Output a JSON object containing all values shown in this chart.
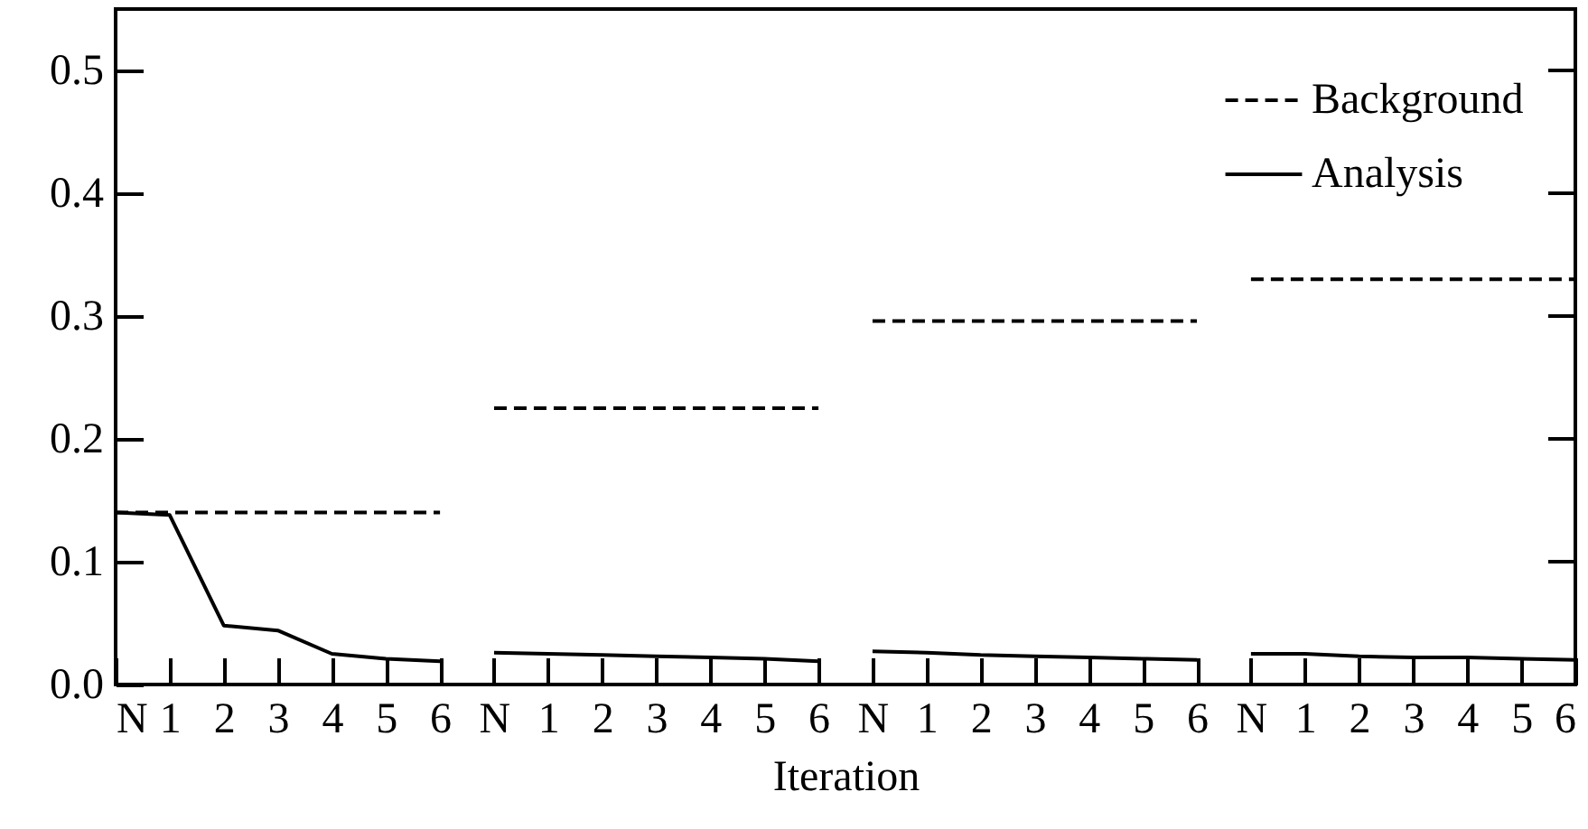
{
  "chart_data": {
    "type": "line",
    "xlabel": "Iteration",
    "categories": [
      "N",
      "1",
      "2",
      "3",
      "4",
      "5",
      "6",
      "N",
      "1",
      "2",
      "3",
      "4",
      "5",
      "6",
      "N",
      "1",
      "2",
      "3",
      "4",
      "5",
      "6",
      "N",
      "1",
      "2",
      "3",
      "4",
      "5",
      "6"
    ],
    "ylim": [
      0,
      0.55
    ],
    "yticks": [
      {
        "value": 0,
        "label": "0.0"
      },
      0.1,
      0.2,
      0.3,
      0.4,
      0.5
    ],
    "grid": false,
    "legend": "top right",
    "series": [
      {
        "name": "Background",
        "color": "#000000",
        "line_style": "dashed",
        "values": [
          0.14,
          0.14,
          0.14,
          0.14,
          0.14,
          0.14,
          0.14,
          null,
          null,
          null,
          null,
          null,
          null,
          null,
          null,
          null,
          null,
          null,
          null,
          null,
          null,
          null,
          null,
          null,
          null,
          null,
          null,
          null
        ]
      },
      {
        "name": "Analysis",
        "color": "#000000",
        "line_style": "solid",
        "values": [
          0.14,
          0.138,
          0.048,
          0.044,
          0.025,
          0.021,
          0.019,
          null,
          null,
          null,
          null,
          null,
          null,
          null,
          null,
          null,
          null,
          null,
          null,
          null,
          null,
          null,
          null,
          null,
          null,
          null,
          null,
          null
        ]
      },
      {
        "color": "#000000",
        "line_style": "dashed",
        "values": [
          null,
          null,
          null,
          null,
          null,
          null,
          null,
          0.225,
          0.225,
          0.225,
          0.225,
          0.225,
          0.225,
          0.225,
          null,
          null,
          null,
          null,
          null,
          null,
          null,
          null,
          null,
          null,
          null,
          null,
          null,
          null
        ]
      },
      {
        "color": "#000000",
        "line_style": "solid",
        "values": [
          null,
          null,
          null,
          null,
          null,
          null,
          null,
          0.026,
          0.025,
          0.024,
          0.023,
          0.022,
          0.021,
          0.019,
          null,
          null,
          null,
          null,
          null,
          null,
          null,
          null,
          null,
          null,
          null,
          null,
          null,
          null
        ]
      },
      {
        "color": "#000000",
        "line_style": "dashed",
        "values": [
          null,
          null,
          null,
          null,
          null,
          null,
          null,
          null,
          null,
          null,
          null,
          null,
          null,
          null,
          0.296,
          0.296,
          0.296,
          0.296,
          0.296,
          0.296,
          0.296,
          null,
          null,
          null,
          null,
          null,
          null,
          null
        ]
      },
      {
        "color": "#000000",
        "line_style": "solid",
        "values": [
          null,
          null,
          null,
          null,
          null,
          null,
          null,
          null,
          null,
          null,
          null,
          null,
          null,
          null,
          0.027,
          0.026,
          0.024,
          0.023,
          0.022,
          0.021,
          0.02,
          null,
          null,
          null,
          null,
          null,
          null,
          null
        ]
      },
      {
        "color": "#000000",
        "line_style": "dashed",
        "values": [
          null,
          null,
          null,
          null,
          null,
          null,
          null,
          null,
          null,
          null,
          null,
          null,
          null,
          null,
          null,
          null,
          null,
          null,
          null,
          null,
          null,
          0.33,
          0.33,
          0.33,
          0.33,
          0.33,
          0.33,
          0.33
        ]
      },
      {
        "color": "#000000",
        "line_style": "solid",
        "values": [
          null,
          null,
          null,
          null,
          null,
          null,
          null,
          null,
          null,
          null,
          null,
          null,
          null,
          null,
          null,
          null,
          null,
          null,
          null,
          null,
          null,
          0.025,
          0.025,
          0.023,
          0.022,
          0.022,
          0.021,
          0.02
        ]
      }
    ]
  }
}
